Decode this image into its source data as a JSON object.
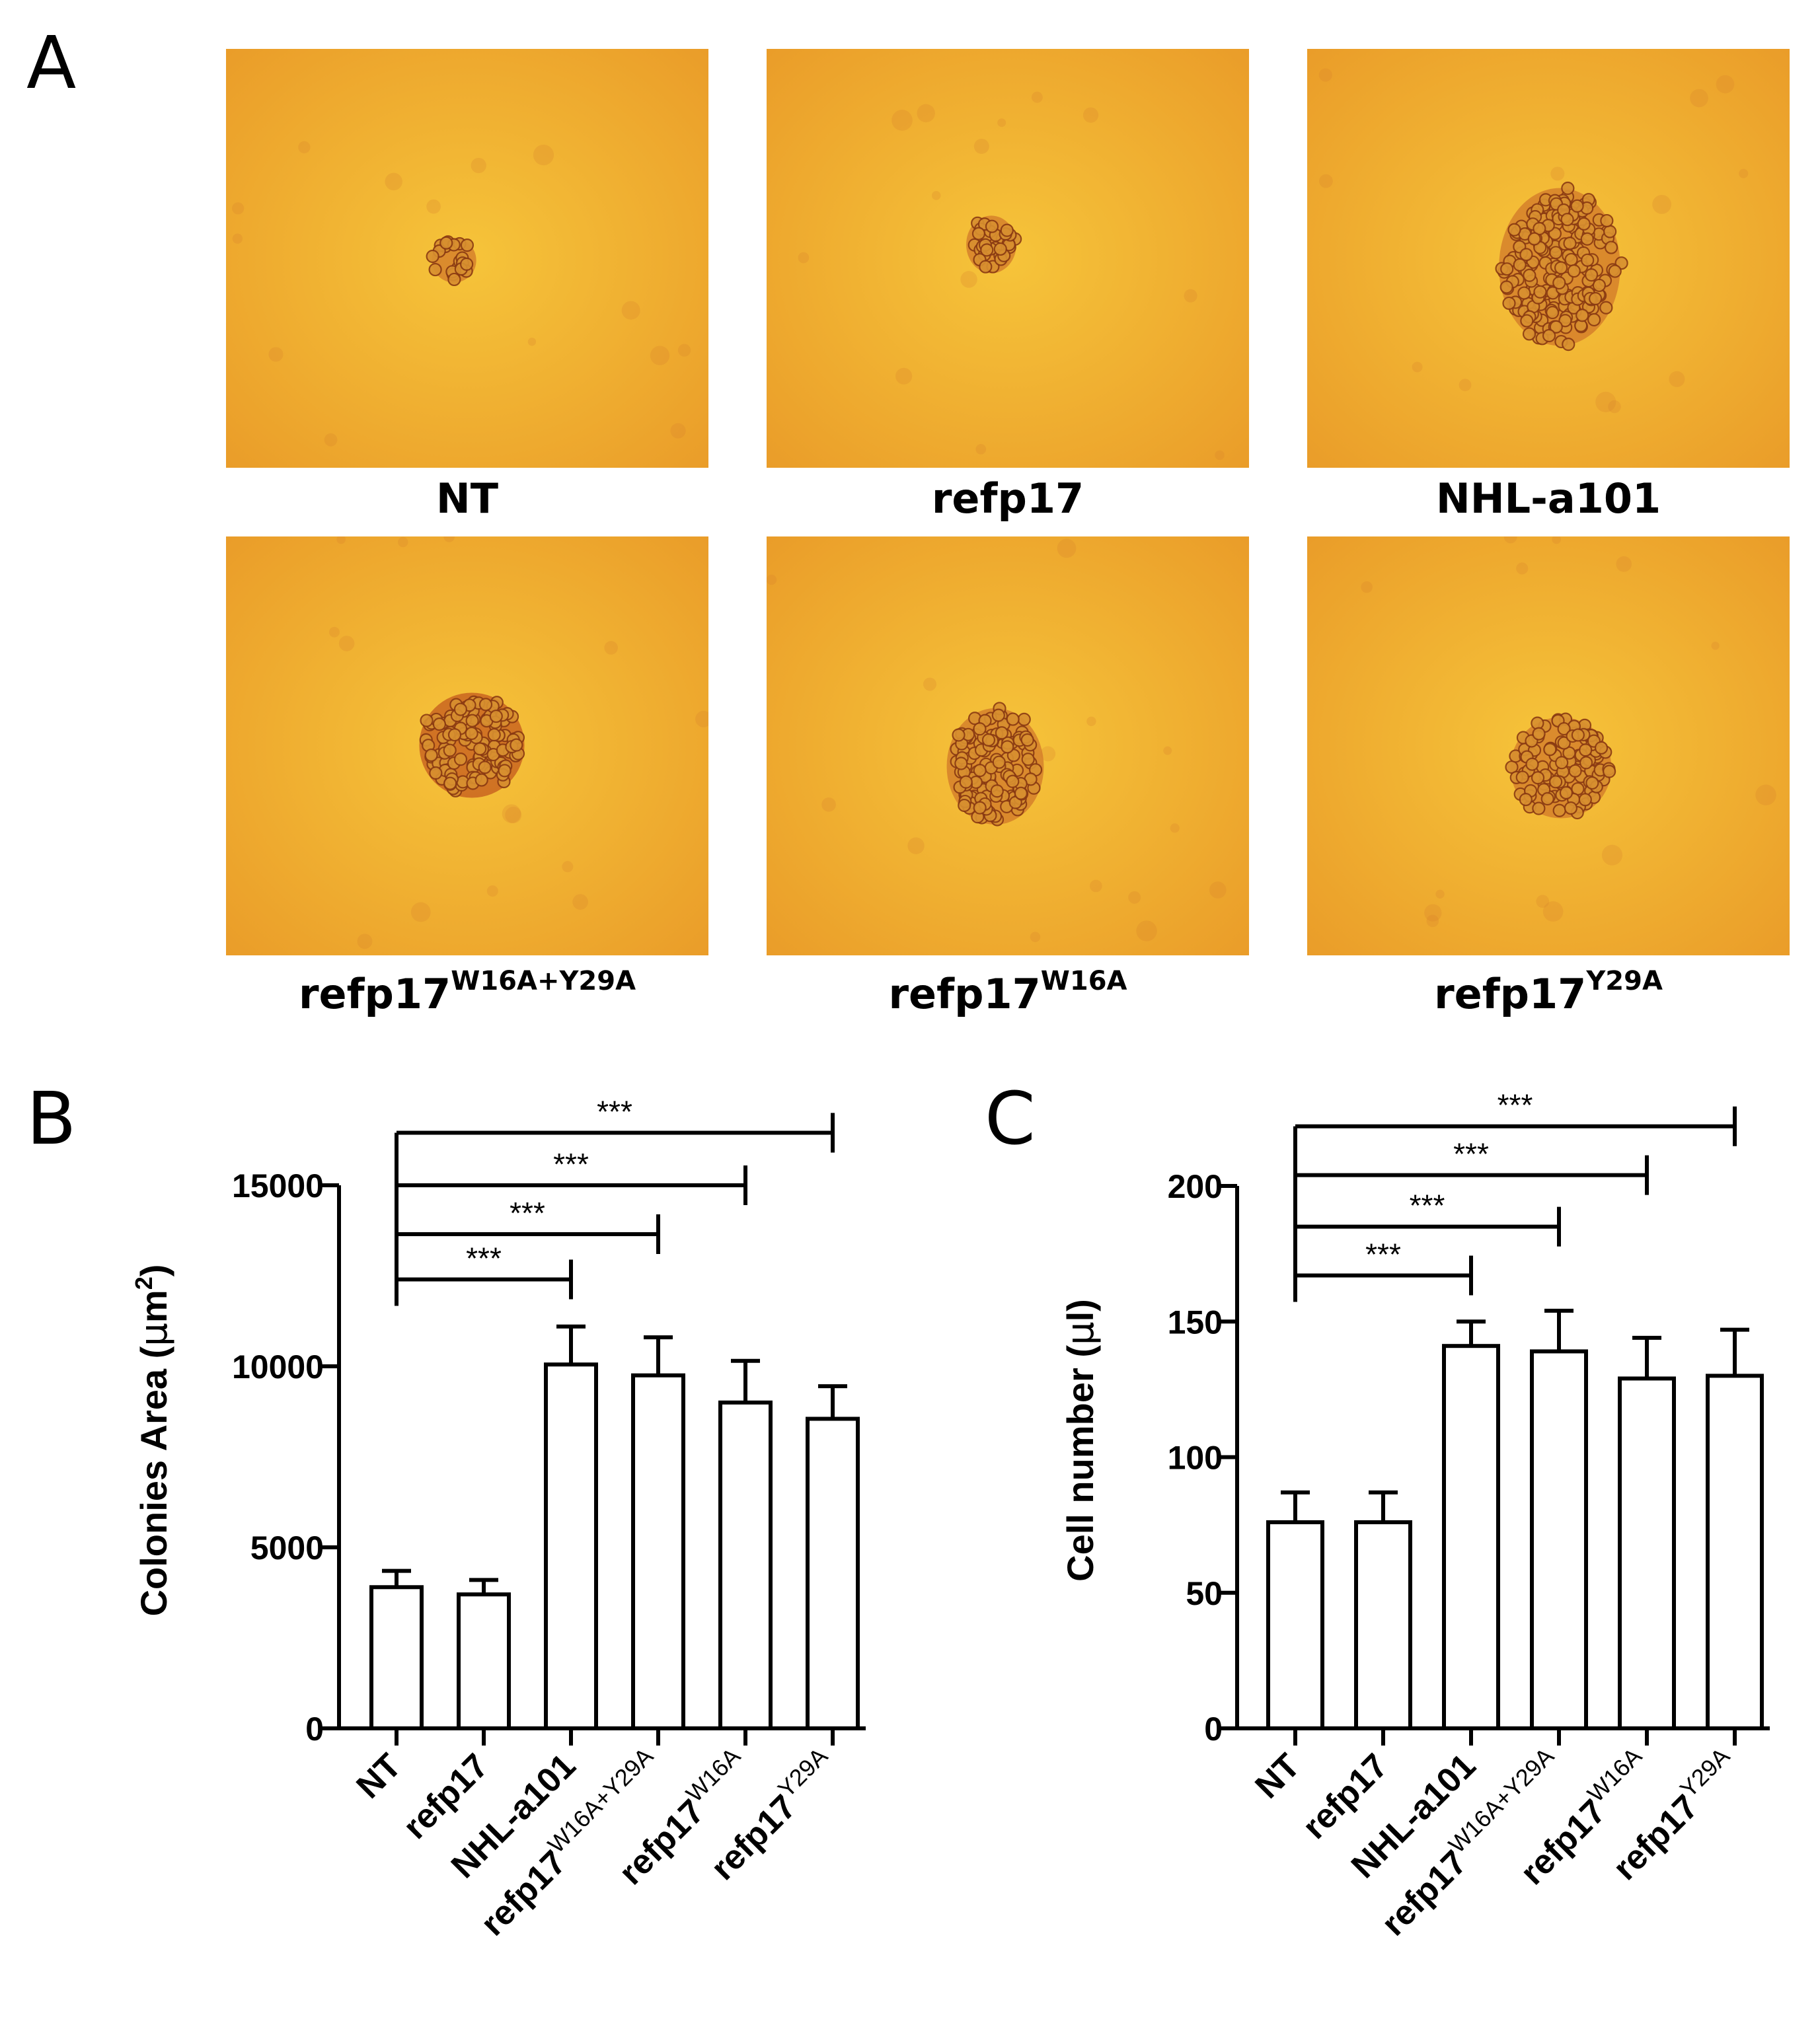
{
  "panels": {
    "A": {
      "letter": "A",
      "images": [
        {
          "base": "NT",
          "sup": ""
        },
        {
          "base": "refp17",
          "sup": ""
        },
        {
          "base": "NHL-a101",
          "sup": ""
        },
        {
          "base": "refp17",
          "sup": "W16A+Y29A"
        },
        {
          "base": "refp17",
          "sup": "W16A"
        },
        {
          "base": "refp17",
          "sup": "Y29A"
        }
      ]
    },
    "B": {
      "letter": "B"
    },
    "C": {
      "letter": "C"
    }
  },
  "chart_data": [
    {
      "type": "bar",
      "panel": "B",
      "ylabel": "Colonies Area (μm²)",
      "ylabel_base": "Colonies Area (",
      "ylabel_mu": "μ",
      "ylabel_unit": "m",
      "ylabel_sup": "2",
      "ylabel_close": ")",
      "ylim": [
        0,
        15000
      ],
      "yticks": [
        "0",
        "5000",
        "10000",
        "15000"
      ],
      "categories": [
        {
          "base": "NT",
          "sup": ""
        },
        {
          "base": "refp17",
          "sup": ""
        },
        {
          "base": "NHL-a101",
          "sup": ""
        },
        {
          "base": "refp17",
          "sup": "W16A+Y29A"
        },
        {
          "base": "refp17",
          "sup": "W16A"
        },
        {
          "base": "refp17",
          "sup": "Y29A"
        }
      ],
      "values": [
        3900,
        3700,
        10050,
        9750,
        9000,
        8550
      ],
      "errors": [
        450,
        400,
        1050,
        1050,
        1150,
        900
      ],
      "significance": [
        {
          "from": 0,
          "to": 2,
          "label": "***",
          "y": 12400
        },
        {
          "from": 0,
          "to": 3,
          "label": "***",
          "y": 13650
        },
        {
          "from": 0,
          "to": 4,
          "label": "***",
          "y": 15000
        },
        {
          "from": 0,
          "to": 5,
          "label": "***",
          "y": 16450
        }
      ]
    },
    {
      "type": "bar",
      "panel": "C",
      "ylabel": "Cell number (μl)",
      "ylabel_base": "Cell number (",
      "ylabel_mu": "μ",
      "ylabel_unit": "l",
      "ylabel_sup": "",
      "ylabel_close": ")",
      "ylim": [
        0,
        200
      ],
      "yticks": [
        "0",
        "50",
        "100",
        "150",
        "200"
      ],
      "categories": [
        {
          "base": "NT",
          "sup": ""
        },
        {
          "base": "refp17",
          "sup": ""
        },
        {
          "base": "NHL-a101",
          "sup": ""
        },
        {
          "base": "refp17",
          "sup": "W16A+Y29A"
        },
        {
          "base": "refp17",
          "sup": "W16A"
        },
        {
          "base": "refp17",
          "sup": "Y29A"
        }
      ],
      "values": [
        76,
        76,
        141,
        139,
        129,
        130
      ],
      "errors": [
        11,
        11,
        9,
        15,
        15,
        17
      ],
      "significance": [
        {
          "from": 0,
          "to": 2,
          "label": "***",
          "y": 167
        },
        {
          "from": 0,
          "to": 3,
          "label": "***",
          "y": 185
        },
        {
          "from": 0,
          "to": 4,
          "label": "***",
          "y": 204
        },
        {
          "from": 0,
          "to": 5,
          "label": "***",
          "y": 222
        }
      ]
    }
  ],
  "colors": {
    "bar_fill": "#ffffff",
    "stroke": "#000000",
    "micro_bg_light": "#f6c43a",
    "micro_bg_dark": "#e99a28",
    "cell_fill": "#d89030",
    "cell_edge": "#8a3a12",
    "colony_core": "#c45a1e"
  }
}
